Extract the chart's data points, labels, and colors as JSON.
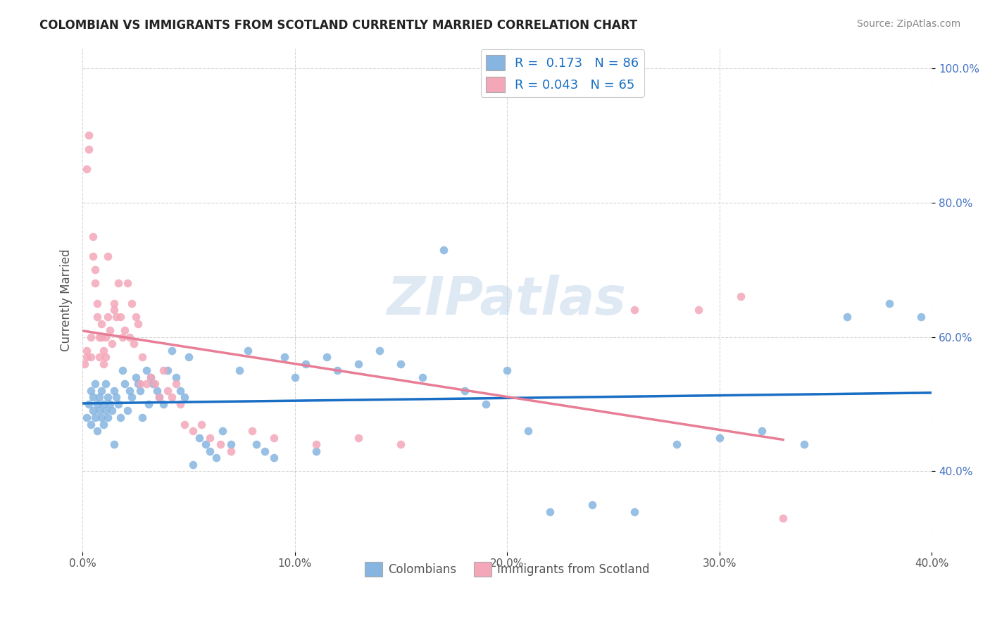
{
  "title": "COLOMBIAN VS IMMIGRANTS FROM SCOTLAND CURRENTLY MARRIED CORRELATION CHART",
  "source": "Source: ZipAtlas.com",
  "ylabel": "Currently Married",
  "xlim": [
    0.0,
    0.4
  ],
  "ylim": [
    0.28,
    1.03
  ],
  "legend_label1": "Colombians",
  "legend_label2": "Immigrants from Scotland",
  "R1": "0.173",
  "N1": "86",
  "R2": "0.043",
  "N2": "65",
  "color_blue": "#85b5e0",
  "color_pink": "#f4a7b9",
  "color_line_blue": "#1a6fc4",
  "color_line_pink": "#e87d96",
  "color_line_dashed": "#b0c8e8",
  "watermark": "ZIPatlas",
  "colombians_x": [
    0.002,
    0.003,
    0.004,
    0.005,
    0.006,
    0.007,
    0.008,
    0.009,
    0.01,
    0.011,
    0.012,
    0.013,
    0.014,
    0.015,
    0.016,
    0.017,
    0.018,
    0.019,
    0.02,
    0.021,
    0.022,
    0.023,
    0.025,
    0.026,
    0.027,
    0.028,
    0.03,
    0.031,
    0.032,
    0.033,
    0.035,
    0.036,
    0.038,
    0.04,
    0.042,
    0.044,
    0.046,
    0.048,
    0.05,
    0.052,
    0.055,
    0.058,
    0.06,
    0.063,
    0.066,
    0.07,
    0.074,
    0.078,
    0.082,
    0.086,
    0.09,
    0.095,
    0.1,
    0.105,
    0.11,
    0.115,
    0.12,
    0.13,
    0.14,
    0.15,
    0.16,
    0.17,
    0.18,
    0.19,
    0.2,
    0.21,
    0.22,
    0.24,
    0.26,
    0.28,
    0.3,
    0.32,
    0.34,
    0.36,
    0.38,
    0.395,
    0.004,
    0.005,
    0.006,
    0.007,
    0.008,
    0.009,
    0.01,
    0.011,
    0.012,
    0.015
  ],
  "colombians_y": [
    0.48,
    0.5,
    0.52,
    0.49,
    0.53,
    0.5,
    0.49,
    0.48,
    0.5,
    0.53,
    0.51,
    0.5,
    0.49,
    0.52,
    0.51,
    0.5,
    0.48,
    0.55,
    0.53,
    0.49,
    0.52,
    0.51,
    0.54,
    0.53,
    0.52,
    0.48,
    0.55,
    0.5,
    0.54,
    0.53,
    0.52,
    0.51,
    0.5,
    0.55,
    0.58,
    0.54,
    0.52,
    0.51,
    0.57,
    0.41,
    0.45,
    0.44,
    0.43,
    0.42,
    0.46,
    0.44,
    0.55,
    0.58,
    0.44,
    0.43,
    0.42,
    0.57,
    0.54,
    0.56,
    0.43,
    0.57,
    0.55,
    0.56,
    0.58,
    0.56,
    0.54,
    0.73,
    0.52,
    0.5,
    0.55,
    0.46,
    0.34,
    0.35,
    0.34,
    0.44,
    0.45,
    0.46,
    0.44,
    0.63,
    0.65,
    0.63,
    0.47,
    0.51,
    0.48,
    0.46,
    0.51,
    0.52,
    0.47,
    0.49,
    0.48,
    0.44
  ],
  "scotland_x": [
    0.001,
    0.002,
    0.002,
    0.003,
    0.003,
    0.004,
    0.004,
    0.005,
    0.005,
    0.006,
    0.006,
    0.007,
    0.007,
    0.008,
    0.008,
    0.009,
    0.009,
    0.01,
    0.01,
    0.011,
    0.011,
    0.012,
    0.013,
    0.014,
    0.015,
    0.016,
    0.017,
    0.018,
    0.019,
    0.02,
    0.021,
    0.022,
    0.023,
    0.024,
    0.025,
    0.026,
    0.027,
    0.028,
    0.03,
    0.032,
    0.034,
    0.036,
    0.038,
    0.04,
    0.042,
    0.044,
    0.046,
    0.048,
    0.052,
    0.056,
    0.06,
    0.065,
    0.07,
    0.08,
    0.09,
    0.11,
    0.13,
    0.15,
    0.26,
    0.29,
    0.31,
    0.33,
    0.015,
    0.002,
    0.012
  ],
  "scotland_y": [
    0.56,
    0.58,
    0.57,
    0.88,
    0.9,
    0.6,
    0.57,
    0.75,
    0.72,
    0.7,
    0.68,
    0.65,
    0.63,
    0.6,
    0.57,
    0.62,
    0.6,
    0.58,
    0.56,
    0.6,
    0.57,
    0.63,
    0.61,
    0.59,
    0.64,
    0.63,
    0.68,
    0.63,
    0.6,
    0.61,
    0.68,
    0.6,
    0.65,
    0.59,
    0.63,
    0.62,
    0.53,
    0.57,
    0.53,
    0.54,
    0.53,
    0.51,
    0.55,
    0.52,
    0.51,
    0.53,
    0.5,
    0.47,
    0.46,
    0.47,
    0.45,
    0.44,
    0.43,
    0.46,
    0.45,
    0.44,
    0.45,
    0.44,
    0.64,
    0.64,
    0.66,
    0.33,
    0.65,
    0.85,
    0.72
  ]
}
